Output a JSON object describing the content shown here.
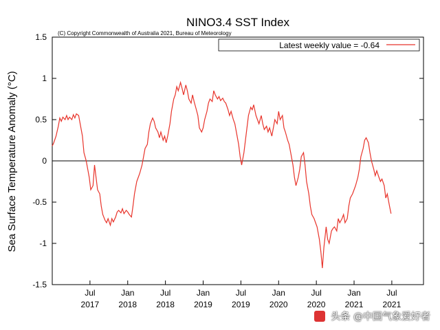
{
  "chart_data": {
    "type": "line",
    "title": "NINO3.4 SST Index",
    "subtitle": "(C) Copyright Commonwealth of Australia 2021, Bureau of Meteorology",
    "ylabel": "Sea Surface Temperature Anomaly (°C)",
    "xlabel": "",
    "ylim": [
      -1.5,
      1.5
    ],
    "yticks": [
      "-1.5",
      "-1",
      "-0.5",
      "0",
      "0.5",
      "1",
      "1.5"
    ],
    "xticks": [
      {
        "month": "Jul",
        "year": "2017",
        "t": 2017.5
      },
      {
        "month": "Jan",
        "year": "2018",
        "t": 2018.0
      },
      {
        "month": "Jul",
        "year": "2018",
        "t": 2018.5
      },
      {
        "month": "Jan",
        "year": "2019",
        "t": 2019.0
      },
      {
        "month": "Jul",
        "year": "2019",
        "t": 2019.5
      },
      {
        "month": "Jan",
        "year": "2020",
        "t": 2020.0
      },
      {
        "month": "Jul",
        "year": "2020",
        "t": 2020.5
      },
      {
        "month": "Jan",
        "year": "2021",
        "t": 2021.0
      },
      {
        "month": "Jul",
        "year": "2021",
        "t": 2021.5
      }
    ],
    "xlim": [
      2017.0,
      2021.92
    ],
    "zero_line": true,
    "grid": false,
    "legend_position": "top-right",
    "color": "#e8332a",
    "series": [
      {
        "name": "Latest weekly value = -0.64",
        "points": [
          [
            2017.0,
            0.18
          ],
          [
            2017.02,
            0.22
          ],
          [
            2017.05,
            0.3
          ],
          [
            2017.08,
            0.42
          ],
          [
            2017.1,
            0.52
          ],
          [
            2017.12,
            0.48
          ],
          [
            2017.14,
            0.53
          ],
          [
            2017.17,
            0.5
          ],
          [
            2017.19,
            0.55
          ],
          [
            2017.21,
            0.5
          ],
          [
            2017.23,
            0.53
          ],
          [
            2017.26,
            0.5
          ],
          [
            2017.28,
            0.56
          ],
          [
            2017.3,
            0.52
          ],
          [
            2017.32,
            0.57
          ],
          [
            2017.35,
            0.55
          ],
          [
            2017.37,
            0.45
          ],
          [
            2017.4,
            0.3
          ],
          [
            2017.42,
            0.1
          ],
          [
            2017.45,
            0.0
          ],
          [
            2017.47,
            -0.1
          ],
          [
            2017.49,
            -0.2
          ],
          [
            2017.51,
            -0.35
          ],
          [
            2017.54,
            -0.3
          ],
          [
            2017.56,
            -0.05
          ],
          [
            2017.58,
            -0.2
          ],
          [
            2017.6,
            -0.35
          ],
          [
            2017.63,
            -0.4
          ],
          [
            2017.65,
            -0.55
          ],
          [
            2017.67,
            -0.65
          ],
          [
            2017.7,
            -0.72
          ],
          [
            2017.72,
            -0.75
          ],
          [
            2017.74,
            -0.7
          ],
          [
            2017.77,
            -0.78
          ],
          [
            2017.79,
            -0.7
          ],
          [
            2017.81,
            -0.74
          ],
          [
            2017.84,
            -0.68
          ],
          [
            2017.86,
            -0.62
          ],
          [
            2017.88,
            -0.6
          ],
          [
            2017.91,
            -0.63
          ],
          [
            2017.93,
            -0.58
          ],
          [
            2017.95,
            -0.64
          ],
          [
            2017.98,
            -0.6
          ],
          [
            2018.0,
            -0.62
          ],
          [
            2018.02,
            -0.65
          ],
          [
            2018.05,
            -0.68
          ],
          [
            2018.07,
            -0.55
          ],
          [
            2018.09,
            -0.4
          ],
          [
            2018.12,
            -0.25
          ],
          [
            2018.14,
            -0.2
          ],
          [
            2018.16,
            -0.15
          ],
          [
            2018.19,
            -0.05
          ],
          [
            2018.21,
            0.05
          ],
          [
            2018.23,
            0.15
          ],
          [
            2018.26,
            0.2
          ],
          [
            2018.28,
            0.35
          ],
          [
            2018.3,
            0.45
          ],
          [
            2018.33,
            0.52
          ],
          [
            2018.35,
            0.48
          ],
          [
            2018.37,
            0.4
          ],
          [
            2018.4,
            0.35
          ],
          [
            2018.42,
            0.28
          ],
          [
            2018.44,
            0.35
          ],
          [
            2018.47,
            0.25
          ],
          [
            2018.49,
            0.3
          ],
          [
            2018.51,
            0.22
          ],
          [
            2018.53,
            0.3
          ],
          [
            2018.56,
            0.45
          ],
          [
            2018.58,
            0.6
          ],
          [
            2018.61,
            0.75
          ],
          [
            2018.63,
            0.8
          ],
          [
            2018.65,
            0.9
          ],
          [
            2018.67,
            0.85
          ],
          [
            2018.7,
            0.95
          ],
          [
            2018.72,
            0.88
          ],
          [
            2018.74,
            0.8
          ],
          [
            2018.77,
            0.92
          ],
          [
            2018.79,
            0.85
          ],
          [
            2018.81,
            0.75
          ],
          [
            2018.84,
            0.7
          ],
          [
            2018.86,
            0.8
          ],
          [
            2018.88,
            0.72
          ],
          [
            2018.91,
            0.62
          ],
          [
            2018.93,
            0.55
          ],
          [
            2018.95,
            0.4
          ],
          [
            2018.98,
            0.35
          ],
          [
            2019.0,
            0.4
          ],
          [
            2019.02,
            0.5
          ],
          [
            2019.05,
            0.6
          ],
          [
            2019.07,
            0.7
          ],
          [
            2019.09,
            0.75
          ],
          [
            2019.12,
            0.72
          ],
          [
            2019.14,
            0.85
          ],
          [
            2019.16,
            0.8
          ],
          [
            2019.19,
            0.75
          ],
          [
            2019.21,
            0.78
          ],
          [
            2019.23,
            0.73
          ],
          [
            2019.26,
            0.76
          ],
          [
            2019.28,
            0.72
          ],
          [
            2019.3,
            0.7
          ],
          [
            2019.33,
            0.62
          ],
          [
            2019.35,
            0.55
          ],
          [
            2019.37,
            0.6
          ],
          [
            2019.4,
            0.5
          ],
          [
            2019.42,
            0.45
          ],
          [
            2019.44,
            0.35
          ],
          [
            2019.47,
            0.2
          ],
          [
            2019.49,
            0.05
          ],
          [
            2019.51,
            -0.05
          ],
          [
            2019.54,
            0.1
          ],
          [
            2019.56,
            0.25
          ],
          [
            2019.58,
            0.4
          ],
          [
            2019.6,
            0.55
          ],
          [
            2019.63,
            0.65
          ],
          [
            2019.65,
            0.62
          ],
          [
            2019.67,
            0.68
          ],
          [
            2019.7,
            0.55
          ],
          [
            2019.72,
            0.5
          ],
          [
            2019.74,
            0.45
          ],
          [
            2019.77,
            0.55
          ],
          [
            2019.79,
            0.45
          ],
          [
            2019.81,
            0.38
          ],
          [
            2019.84,
            0.42
          ],
          [
            2019.86,
            0.35
          ],
          [
            2019.88,
            0.4
          ],
          [
            2019.91,
            0.3
          ],
          [
            2019.93,
            0.4
          ],
          [
            2019.95,
            0.5
          ],
          [
            2019.98,
            0.45
          ],
          [
            2020.0,
            0.6
          ],
          [
            2020.02,
            0.5
          ],
          [
            2020.05,
            0.55
          ],
          [
            2020.07,
            0.4
          ],
          [
            2020.09,
            0.35
          ],
          [
            2020.12,
            0.25
          ],
          [
            2020.14,
            0.2
          ],
          [
            2020.16,
            0.1
          ],
          [
            2020.19,
            -0.05
          ],
          [
            2020.21,
            -0.2
          ],
          [
            2020.23,
            -0.3
          ],
          [
            2020.26,
            -0.2
          ],
          [
            2020.28,
            -0.1
          ],
          [
            2020.3,
            0.05
          ],
          [
            2020.33,
            0.1
          ],
          [
            2020.35,
            -0.05
          ],
          [
            2020.37,
            -0.25
          ],
          [
            2020.4,
            -0.4
          ],
          [
            2020.42,
            -0.55
          ],
          [
            2020.44,
            -0.65
          ],
          [
            2020.47,
            -0.7
          ],
          [
            2020.49,
            -0.75
          ],
          [
            2020.51,
            -0.8
          ],
          [
            2020.54,
            -0.95
          ],
          [
            2020.56,
            -1.1
          ],
          [
            2020.58,
            -1.3
          ],
          [
            2020.6,
            -1.05
          ],
          [
            2020.63,
            -0.8
          ],
          [
            2020.65,
            -0.95
          ],
          [
            2020.67,
            -1.0
          ],
          [
            2020.7,
            -0.85
          ],
          [
            2020.72,
            -0.82
          ],
          [
            2020.74,
            -0.8
          ],
          [
            2020.77,
            -0.85
          ],
          [
            2020.79,
            -0.7
          ],
          [
            2020.81,
            -0.75
          ],
          [
            2020.84,
            -0.7
          ],
          [
            2020.86,
            -0.65
          ],
          [
            2020.88,
            -0.75
          ],
          [
            2020.91,
            -0.7
          ],
          [
            2020.93,
            -0.55
          ],
          [
            2020.95,
            -0.45
          ],
          [
            2020.98,
            -0.4
          ],
          [
            2021.0,
            -0.35
          ],
          [
            2021.02,
            -0.3
          ],
          [
            2021.05,
            -0.2
          ],
          [
            2021.07,
            -0.1
          ],
          [
            2021.09,
            0.05
          ],
          [
            2021.12,
            0.15
          ],
          [
            2021.14,
            0.25
          ],
          [
            2021.16,
            0.28
          ],
          [
            2021.19,
            0.22
          ],
          [
            2021.21,
            0.1
          ],
          [
            2021.23,
            0.0
          ],
          [
            2021.26,
            -0.1
          ],
          [
            2021.28,
            -0.18
          ],
          [
            2021.3,
            -0.12
          ],
          [
            2021.33,
            -0.2
          ],
          [
            2021.35,
            -0.25
          ],
          [
            2021.37,
            -0.22
          ],
          [
            2021.4,
            -0.3
          ],
          [
            2021.42,
            -0.45
          ],
          [
            2021.44,
            -0.4
          ],
          [
            2021.47,
            -0.55
          ],
          [
            2021.49,
            -0.64
          ]
        ]
      }
    ]
  },
  "watermark": {
    "text": "头条 @中国气象爱好者"
  }
}
